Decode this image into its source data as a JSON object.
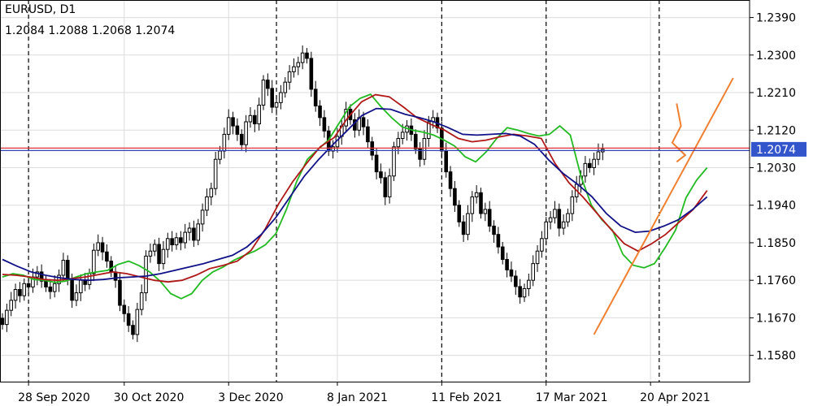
{
  "header": {
    "symbol": "EURUSD, D1",
    "ohlc": "1.2084 1.2088 1.2068 1.2074"
  },
  "chart_data": {
    "type": "candlestick",
    "title": "EURUSD, D1",
    "symbol": "EURUSD",
    "timeframe": "D1",
    "last_ohlc": {
      "open": 1.2084,
      "high": 1.2088,
      "low": 1.2068,
      "close": 1.2074
    },
    "current_price": 1.2074,
    "current_price_label": "1.2074",
    "y_ticks": [
      "1.2390",
      "1.2300",
      "1.2210",
      "1.2120",
      "1.2030",
      "1.1940",
      "1.1850",
      "1.1760",
      "1.1670",
      "1.1580"
    ],
    "ylim": [
      1.1517,
      1.2432
    ],
    "x_ticks": [
      "28 Sep 2020",
      "30 Oct 2020",
      "3 Dec 2020",
      "8 Jan 2021",
      "11 Feb 2021",
      "17 Mar 2021",
      "20 Apr 2021"
    ],
    "x_tick_bars": [
      6,
      28,
      52,
      77,
      101,
      125,
      149
    ],
    "grid": true,
    "vertical_separators_bars": [
      6,
      63,
      101,
      125,
      151
    ],
    "colors": {
      "background": "#ffffff",
      "grid": "#dcdcdc",
      "candle_up": "#ffffff",
      "candle_down": "#000000",
      "ma_fast": "#22bb22",
      "ma_mid": "#b01818",
      "ma_slow": "#111188",
      "trendline": "#f08030",
      "price_line_red": "#dd3333",
      "price_line_blue": "#3344bb",
      "price_badge": "#3355cc"
    },
    "closes": [
      1.1654,
      1.1688,
      1.1712,
      1.1738,
      1.1723,
      1.1752,
      1.1744,
      1.1768,
      1.178,
      1.1758,
      1.1744,
      1.1733,
      1.1752,
      1.1772,
      1.1808,
      1.176,
      1.1712,
      1.173,
      1.176,
      1.175,
      1.1776,
      1.1832,
      1.185,
      1.1828,
      1.1806,
      1.178,
      1.176,
      1.17,
      1.168,
      1.1652,
      1.163,
      1.169,
      1.173,
      1.1818,
      1.183,
      1.1846,
      1.18,
      1.1834,
      1.186,
      1.1845,
      1.1862,
      1.185,
      1.1875,
      1.1885,
      1.1856,
      1.1895,
      1.1928,
      1.196,
      1.198,
      1.205,
      1.207,
      1.211,
      1.215,
      1.213,
      1.211,
      1.2085,
      1.214,
      1.2155,
      1.2135,
      1.218,
      1.224,
      1.222,
      1.2175,
      1.2186,
      1.221,
      1.2235,
      1.226,
      1.2272,
      1.2282,
      1.2305,
      1.2292,
      1.2218,
      1.2178,
      1.215,
      1.2118,
      1.207,
      1.208,
      1.2105,
      1.213,
      1.217,
      1.2145,
      1.212,
      1.215,
      1.2128,
      1.2092,
      1.206,
      1.202,
      1.2006,
      1.196,
      1.201,
      1.208,
      1.21,
      1.2115,
      1.213,
      1.211,
      1.2075,
      1.205,
      1.21,
      1.214,
      1.215,
      1.2125,
      1.207,
      1.202,
      1.198,
      1.194,
      1.19,
      1.187,
      1.192,
      1.196,
      1.197,
      1.192,
      1.193,
      1.189,
      1.187,
      1.184,
      1.181,
      1.1785,
      1.177,
      1.1745,
      1.172,
      1.174,
      1.176,
      1.18,
      1.183,
      1.186,
      1.19,
      1.191,
      1.193,
      1.1885,
      1.19,
      1.192,
      1.196,
      1.199,
      1.201,
      1.204,
      1.203,
      1.205,
      1.2068,
      1.2074
    ],
    "moving_averages": [
      {
        "series": "ma_fast",
        "values": [
          1.1768,
          1.1776,
          1.1772,
          1.1762,
          1.176,
          1.1755,
          1.1758,
          1.1768,
          1.1776,
          1.178,
          1.1784,
          1.1798,
          1.1806,
          1.1795,
          1.178,
          1.1758,
          1.1728,
          1.1716,
          1.1728,
          1.176,
          1.178,
          1.1792,
          1.1808,
          1.182,
          1.183,
          1.1845,
          1.1872,
          1.193,
          1.1998,
          1.205,
          1.2074,
          1.2096,
          1.2136,
          1.2176,
          1.2196,
          1.2206,
          1.2176,
          1.215,
          1.2128,
          1.212,
          1.2115,
          1.2108,
          1.2096,
          1.2082,
          1.2056,
          1.2044,
          1.2068,
          1.21,
          1.2126,
          1.212,
          1.2112,
          1.2106,
          1.211,
          1.213,
          1.2108,
          1.201,
          1.194,
          1.1905,
          1.188,
          1.1822,
          1.1796,
          1.179,
          1.18,
          1.1838,
          1.188,
          1.1958,
          1.2,
          1.203
        ]
      },
      {
        "series": "ma_mid",
        "values": [
          1.1774,
          1.1772,
          1.1768,
          1.1762,
          1.176,
          1.1764,
          1.1768,
          1.1774,
          1.178,
          1.1776,
          1.1768,
          1.176,
          1.1756,
          1.176,
          1.1772,
          1.1788,
          1.1796,
          1.1806,
          1.1832,
          1.1882,
          1.1944,
          1.1996,
          1.204,
          1.208,
          1.2102,
          1.215,
          1.2188,
          1.2205,
          1.22,
          1.2176,
          1.215,
          1.2134,
          1.212,
          1.21,
          1.2092,
          1.2096,
          1.2104,
          1.211,
          1.2106,
          1.21,
          1.204,
          1.1994,
          1.196,
          1.1922,
          1.1884,
          1.1848,
          1.183,
          1.1848,
          1.187,
          1.19,
          1.193,
          1.1975
        ]
      },
      {
        "series": "ma_slow",
        "values": [
          1.181,
          1.1794,
          1.178,
          1.1772,
          1.1766,
          1.1762,
          1.176,
          1.1762,
          1.1766,
          1.1768,
          1.177,
          1.1776,
          1.1784,
          1.1792,
          1.18,
          1.181,
          1.182,
          1.184,
          1.187,
          1.191,
          1.196,
          1.201,
          1.205,
          1.2086,
          1.212,
          1.2155,
          1.2172,
          1.217,
          1.2158,
          1.215,
          1.214,
          1.2126,
          1.211,
          1.2108,
          1.211,
          1.2112,
          1.2106,
          1.2086,
          1.2048,
          1.2016,
          1.199,
          1.196,
          1.192,
          1.189,
          1.1875,
          1.1878,
          1.189,
          1.1905,
          1.193,
          1.196
        ]
      }
    ],
    "trendlines": [
      {
        "name": "support-trendline",
        "from": {
          "bar": 136,
          "price": 1.163
        },
        "to": {
          "bar": 168,
          "price": 1.2245
        }
      },
      {
        "name": "oscillation-marker",
        "points": [
          {
            "bar": 155,
            "price": 1.2184
          },
          {
            "bar": 156,
            "price": 1.213
          },
          {
            "bar": 154,
            "price": 1.209
          },
          {
            "bar": 157,
            "price": 1.206
          },
          {
            "bar": 155,
            "price": 1.2044
          }
        ]
      }
    ]
  }
}
